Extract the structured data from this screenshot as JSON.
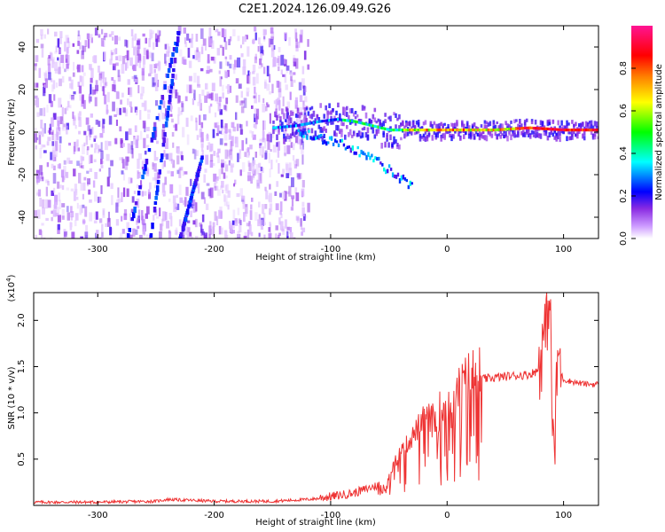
{
  "title": "C2E1.2024.126.09.49.G26",
  "chart_data": [
    {
      "type": "heatmap",
      "xlabel": "Height of straight line (km)",
      "ylabel": "Frequency (Hz)",
      "xlim": [
        -355,
        130
      ],
      "ylim": [
        -50,
        50
      ],
      "xticks": [
        -300,
        -200,
        -100,
        0,
        100
      ],
      "yticks": [
        -40,
        -20,
        0,
        20,
        40
      ],
      "colorbar": {
        "label": "Normalized spectral amplitude",
        "range": [
          0,
          1
        ],
        "ticks": [
          "0.0",
          "0.2",
          "0.4",
          "0.6",
          "0.8"
        ],
        "colors": [
          "#ffffff",
          "#8a2be2",
          "#0000ff",
          "#00ffff",
          "#00ff00",
          "#ffff00",
          "#ff8000",
          "#ff0000",
          "#ff1493"
        ]
      },
      "features": {
        "noise_region_x": [
          -355,
          -130
        ],
        "streaks": [
          {
            "x": [
              -275,
              -230
            ],
            "y": [
              -50,
              50
            ]
          },
          {
            "x": [
              -255,
              -230
            ],
            "y": [
              -50,
              50
            ]
          },
          {
            "x": [
              -230,
              -210
            ],
            "y": [
              -50,
              -10
            ]
          }
        ],
        "tone_track": [
          {
            "x": -150,
            "y": 2
          },
          {
            "x": -130,
            "y": 3
          },
          {
            "x": -110,
            "y": 5
          },
          {
            "x": -95,
            "y": 6
          },
          {
            "x": -80,
            "y": 5
          },
          {
            "x": -65,
            "y": 3
          },
          {
            "x": -50,
            "y": 1
          },
          {
            "x": -30,
            "y": 1
          },
          {
            "x": -10,
            "y": 1
          },
          {
            "x": 10,
            "y": 1
          },
          {
            "x": 40,
            "y": 1
          },
          {
            "x": 70,
            "y": 2
          },
          {
            "x": 100,
            "y": 1
          },
          {
            "x": 130,
            "y": 1
          }
        ],
        "descending_arm": [
          {
            "x": -130,
            "y": 0
          },
          {
            "x": -100,
            "y": -4
          },
          {
            "x": -80,
            "y": -8
          },
          {
            "x": -60,
            "y": -14
          },
          {
            "x": -45,
            "y": -20
          },
          {
            "x": -30,
            "y": -26
          }
        ]
      }
    },
    {
      "type": "line",
      "xlabel": "Height of straight line (km)",
      "ylabel": "SNR (10 * v/v)",
      "y_multiplier": "(x10⁴)",
      "y_multiplier_base": "(x10",
      "y_multiplier_exp": "4",
      "y_multiplier_close": ")",
      "xlim": [
        -355,
        130
      ],
      "ylim": [
        0,
        2.3
      ],
      "xticks": [
        -300,
        -200,
        -100,
        0,
        100
      ],
      "yticks": [
        0.5,
        1.0,
        1.5,
        2.0
      ],
      "ytick_labels": [
        "0.5",
        "1.0",
        "1.5",
        "2.0"
      ],
      "color": "#ee3333",
      "series": [
        {
          "x": [
            -355,
            -300,
            -250,
            -240,
            -200,
            -150,
            -120,
            -100,
            -80,
            -60,
            -50,
            -45,
            -40,
            -30,
            -20,
            -10,
            -5,
            0,
            10,
            20,
            30,
            50,
            70,
            80,
            85,
            88,
            90,
            92,
            95,
            100,
            110,
            120,
            130
          ],
          "y": [
            0.03,
            0.03,
            0.04,
            0.06,
            0.04,
            0.04,
            0.06,
            0.08,
            0.12,
            0.2,
            0.3,
            0.45,
            0.55,
            0.7,
            0.9,
            0.85,
            1.0,
            1.05,
            1.15,
            1.3,
            1.35,
            1.38,
            1.4,
            1.45,
            1.8,
            2.25,
            1.0,
            0.3,
            1.5,
            1.35,
            1.32,
            1.3,
            1.3
          ]
        }
      ]
    }
  ]
}
